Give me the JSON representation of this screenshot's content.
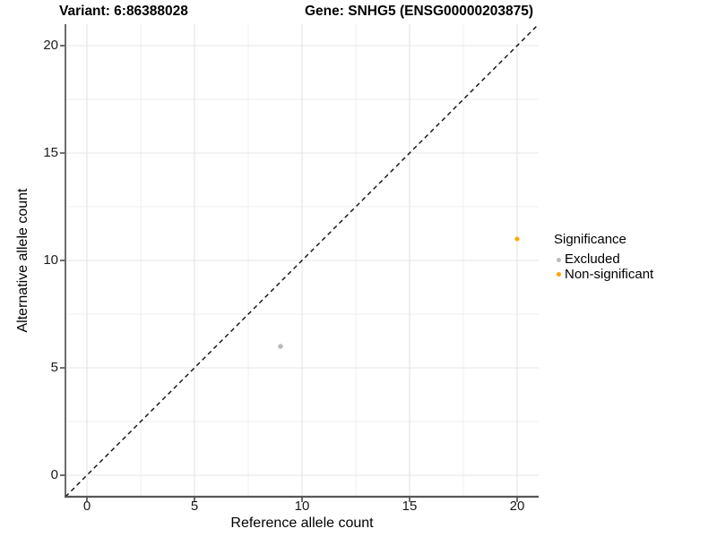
{
  "titles": {
    "variant": "Variant: 6:86388028",
    "gene": "Gene: SNHG5 (ENSG00000203875)"
  },
  "chart_data": {
    "type": "scatter",
    "title": "Variant: 6:86388028    Gene: SNHG5 (ENSG00000203875)",
    "xlabel": "Reference allele count",
    "ylabel": "Alternative allele count",
    "xlim": [
      -1,
      21
    ],
    "ylim": [
      -1,
      21
    ],
    "xticks": [
      0,
      5,
      10,
      15,
      20
    ],
    "yticks": [
      0,
      5,
      10,
      15,
      20
    ],
    "minor_xticks": [
      2.5,
      7.5,
      12.5,
      17.5
    ],
    "minor_yticks": [
      2.5,
      7.5,
      12.5,
      17.5
    ],
    "grid": "major and minor gridlines, white panel",
    "legend": {
      "title": "Significance",
      "position": "right"
    },
    "identity_line": {
      "style": "dashed",
      "from": [
        -1,
        -1
      ],
      "to": [
        21,
        21
      ]
    },
    "series": [
      {
        "name": "Excluded",
        "color": "#BBBBBB",
        "radius_px": 2.8,
        "points": [
          {
            "x": 9,
            "y": 6
          }
        ]
      },
      {
        "name": "Non-significant",
        "color": "#FFA500",
        "radius_px": 2.5,
        "points": [
          {
            "x": 20,
            "y": 11
          }
        ]
      }
    ]
  },
  "style": {
    "background": "#FFFFFF",
    "major_grid_color": "#E4E4E4",
    "minor_grid_color": "#EFEFEF",
    "y_axis_line_color": "#2E2E2E",
    "x_axis_line_color": "#565656",
    "tick_mark_color": "#1F1F1F",
    "dashed_line_color": "#0B0B0B",
    "text_color": "#000000"
  }
}
